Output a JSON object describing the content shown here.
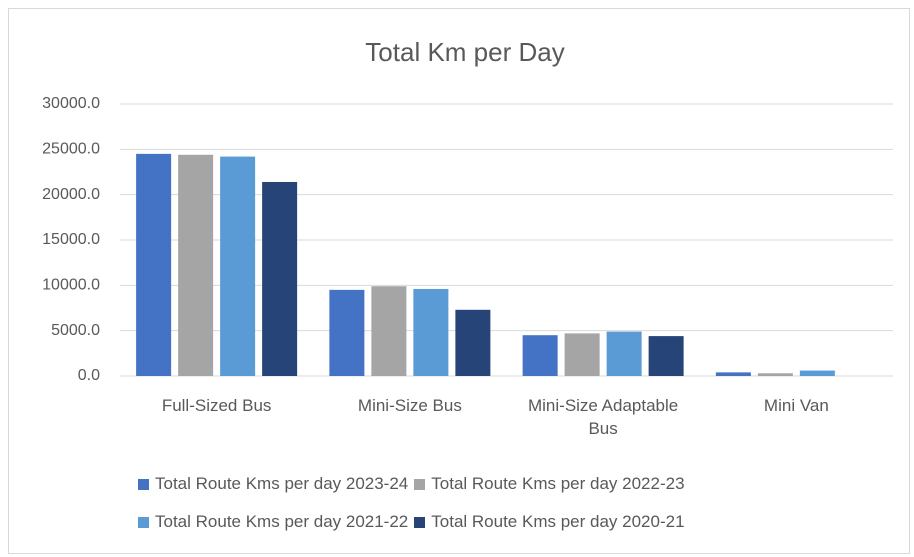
{
  "chart_data": {
    "type": "bar",
    "title": "Total Km per Day",
    "categories": [
      "Full-Sized Bus",
      "Mini-Size Bus",
      "Mini-Size Adaptable Bus",
      "Mini Van"
    ],
    "series": [
      {
        "name": "Total Route Kms per day 2023-24",
        "color": "#4472c4",
        "values": [
          24500,
          9500,
          4500,
          400
        ]
      },
      {
        "name": "Total Route Kms per day 2022-23",
        "color": "#a5a5a5",
        "values": [
          24400,
          9900,
          4700,
          300
        ]
      },
      {
        "name": "Total Route Kms per day 2021-22",
        "color": "#5b9bd5",
        "values": [
          24200,
          9600,
          4900,
          600
        ]
      },
      {
        "name": "Total Route Kms per day 2020-21",
        "color": "#264478",
        "values": [
          21400,
          7300,
          4400,
          0
        ]
      }
    ],
    "ylim": [
      0,
      30000
    ],
    "yticks": [
      {
        "value": 0,
        "label": "0.0"
      },
      {
        "value": 5000,
        "label": "5000.0"
      },
      {
        "value": 10000,
        "label": "10000.0"
      },
      {
        "value": 15000,
        "label": "15000.0"
      },
      {
        "value": 20000,
        "label": "20000.0"
      },
      {
        "value": 25000,
        "label": "25000.0"
      },
      {
        "value": 30000,
        "label": "30000.0"
      }
    ],
    "grid": true,
    "legend": "bottom"
  }
}
